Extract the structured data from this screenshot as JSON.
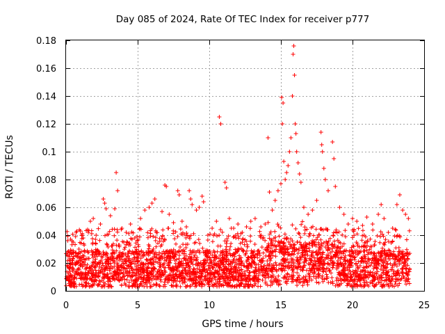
{
  "chart_data": {
    "type": "scatter",
    "title": "Day 085 of 2024, Rate Of TEC Index for receiver p777",
    "xlabel": "GPS time / hours",
    "ylabel": "ROTI / TECUs",
    "xlim": [
      0,
      25
    ],
    "ylim": [
      0,
      0.18
    ],
    "xticks": [
      0,
      5,
      10,
      15,
      20,
      25
    ],
    "xtick_labels": [
      "0",
      "5",
      "10",
      "15",
      "20",
      "25"
    ],
    "yticks": [
      0,
      0.02,
      0.04,
      0.06,
      0.08,
      0.1,
      0.12,
      0.14,
      0.16,
      0.18
    ],
    "ytick_labels": [
      "0",
      "0.02",
      "0.04",
      "0.06",
      "0.08",
      "0.1",
      "0.12",
      "0.14",
      "0.16",
      "0.18"
    ],
    "grid": true,
    "marker": "+",
    "color": "#ff0000",
    "series": [
      {
        "name": "ROTI",
        "points": [
          [
            0.1,
            0.028
          ],
          [
            0.3,
            0.022
          ],
          [
            0.5,
            0.035
          ],
          [
            0.7,
            0.042
          ],
          [
            0.9,
            0.03
          ],
          [
            1.0,
            0.043
          ],
          [
            1.2,
            0.038
          ],
          [
            1.5,
            0.044
          ],
          [
            1.7,
            0.05
          ],
          [
            1.9,
            0.052
          ],
          [
            2.1,
            0.04
          ],
          [
            2.4,
            0.048
          ],
          [
            2.6,
            0.066
          ],
          [
            2.7,
            0.063
          ],
          [
            2.8,
            0.059
          ],
          [
            3.1,
            0.054
          ],
          [
            3.4,
            0.059
          ],
          [
            3.5,
            0.085
          ],
          [
            3.6,
            0.072
          ],
          [
            3.9,
            0.045
          ],
          [
            4.2,
            0.042
          ],
          [
            4.5,
            0.048
          ],
          [
            4.8,
            0.038
          ],
          [
            5.2,
            0.052
          ],
          [
            5.5,
            0.058
          ],
          [
            5.8,
            0.06
          ],
          [
            6.0,
            0.063
          ],
          [
            6.2,
            0.066
          ],
          [
            6.7,
            0.057
          ],
          [
            6.9,
            0.076
          ],
          [
            7.0,
            0.075
          ],
          [
            7.2,
            0.055
          ],
          [
            7.5,
            0.049
          ],
          [
            7.8,
            0.072
          ],
          [
            7.9,
            0.069
          ],
          [
            8.1,
            0.05
          ],
          [
            8.4,
            0.046
          ],
          [
            8.6,
            0.072
          ],
          [
            8.7,
            0.066
          ],
          [
            8.8,
            0.062
          ],
          [
            9.1,
            0.058
          ],
          [
            9.3,
            0.06
          ],
          [
            9.5,
            0.068
          ],
          [
            9.6,
            0.064
          ],
          [
            9.9,
            0.04
          ],
          [
            10.2,
            0.045
          ],
          [
            10.5,
            0.05
          ],
          [
            10.7,
            0.125
          ],
          [
            10.8,
            0.12
          ],
          [
            11.1,
            0.078
          ],
          [
            11.2,
            0.074
          ],
          [
            11.4,
            0.052
          ],
          [
            11.7,
            0.045
          ],
          [
            12.0,
            0.048
          ],
          [
            12.3,
            0.042
          ],
          [
            12.6,
            0.046
          ],
          [
            12.9,
            0.05
          ],
          [
            13.2,
            0.052
          ],
          [
            13.6,
            0.046
          ],
          [
            13.9,
            0.048
          ],
          [
            14.1,
            0.11
          ],
          [
            14.2,
            0.071
          ],
          [
            14.4,
            0.058
          ],
          [
            14.6,
            0.065
          ],
          [
            14.8,
            0.072
          ],
          [
            15.0,
            0.077
          ],
          [
            15.05,
            0.139
          ],
          [
            15.1,
            0.12
          ],
          [
            15.15,
            0.135
          ],
          [
            15.2,
            0.093
          ],
          [
            15.3,
            0.08
          ],
          [
            15.4,
            0.085
          ],
          [
            15.5,
            0.09
          ],
          [
            15.6,
            0.1
          ],
          [
            15.7,
            0.11
          ],
          [
            15.8,
            0.14
          ],
          [
            15.85,
            0.17
          ],
          [
            15.9,
            0.176
          ],
          [
            15.95,
            0.155
          ],
          [
            16.0,
            0.12
          ],
          [
            16.05,
            0.113
          ],
          [
            16.1,
            0.1
          ],
          [
            16.2,
            0.092
          ],
          [
            16.3,
            0.084
          ],
          [
            16.4,
            0.078
          ],
          [
            16.6,
            0.06
          ],
          [
            16.9,
            0.055
          ],
          [
            17.2,
            0.058
          ],
          [
            17.5,
            0.065
          ],
          [
            17.8,
            0.114
          ],
          [
            17.85,
            0.105
          ],
          [
            17.9,
            0.1
          ],
          [
            18.0,
            0.088
          ],
          [
            18.1,
            0.08
          ],
          [
            18.3,
            0.072
          ],
          [
            18.6,
            0.107
          ],
          [
            18.7,
            0.095
          ],
          [
            18.8,
            0.075
          ],
          [
            19.1,
            0.06
          ],
          [
            19.4,
            0.055
          ],
          [
            19.7,
            0.048
          ],
          [
            20.0,
            0.052
          ],
          [
            20.3,
            0.05
          ],
          [
            20.7,
            0.047
          ],
          [
            21.0,
            0.053
          ],
          [
            21.4,
            0.048
          ],
          [
            21.8,
            0.055
          ],
          [
            22.0,
            0.062
          ],
          [
            22.2,
            0.052
          ],
          [
            22.5,
            0.042
          ],
          [
            22.8,
            0.045
          ],
          [
            23.1,
            0.062
          ],
          [
            23.3,
            0.069
          ],
          [
            23.5,
            0.058
          ],
          [
            23.7,
            0.055
          ],
          [
            23.9,
            0.052
          ]
        ],
        "band": {
          "x_start": 0,
          "x_end": 24,
          "typical_min": 0.003,
          "typical_max": 0.045
        }
      }
    ]
  }
}
